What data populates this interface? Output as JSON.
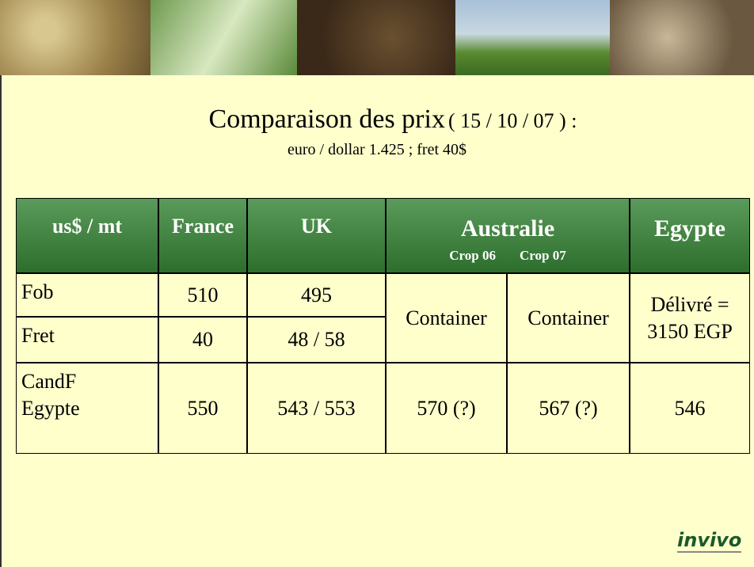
{
  "title": "Comparaison des prix",
  "title_date": "( 15 / 10 / 07 ) :",
  "subtitle": "euro / dollar 1.425 ; fret 40$",
  "table": {
    "header": [
      "us$ / mt",
      "France",
      "UK",
      "Australie",
      "Egypte"
    ],
    "subheader": [
      "Crop 06",
      "Crop 07"
    ],
    "rows": [
      {
        "label": [
          "Fob"
        ],
        "france": 510,
        "uk": 495
      },
      {
        "label": [
          "Fret"
        ],
        "france": 40,
        "uk": "48 / 58"
      },
      {
        "label": [
          "CandF",
          "Egypte"
        ],
        "france": 550,
        "uk": "543 / 553",
        "crop06": "570 (?)",
        "crop07": "567 (?)",
        "egypte": 546
      }
    ],
    "merged": {
      "crop06": "Container",
      "crop07": "Container",
      "egypte": [
        "Délivré =",
        "3150 EGP"
      ]
    }
  },
  "logo": "invivo"
}
